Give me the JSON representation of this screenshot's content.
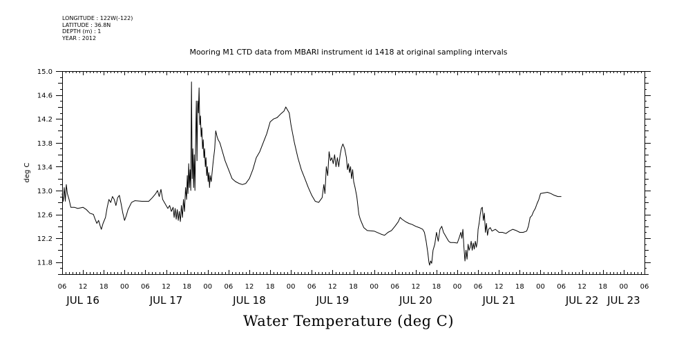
{
  "header_info": {
    "lines": [
      "LONGITUDE : 122W(-122)",
      "LATITUDE : 36.8N",
      "DEPTH (m) : 1",
      "YEAR : 2012"
    ]
  },
  "chart_data": {
    "type": "line",
    "title": "Mooring M1 CTD data from MBARI instrument id 1418 at original sampling intervals",
    "xlabel": "Water Temperature (deg C)",
    "ylabel": "deg C",
    "ylim": [
      11.6,
      15.0
    ],
    "yticks": [
      "11.8",
      "12.2",
      "12.6",
      "13.0",
      "13.4",
      "13.8",
      "14.2",
      "14.6",
      "15.0"
    ],
    "xlim_hours": [
      6,
      174
    ],
    "hour_tick_labels": [
      "06",
      "12",
      "18",
      "00",
      "06",
      "12",
      "18",
      "00",
      "06",
      "12",
      "18",
      "00",
      "06",
      "12",
      "18",
      "00",
      "06",
      "12",
      "18",
      "00",
      "06",
      "12",
      "18",
      "00",
      "06",
      "12",
      "18",
      "00",
      "06"
    ],
    "day_labels": [
      {
        "label": "JUL 16",
        "hour": 12
      },
      {
        "label": "JUL 17",
        "hour": 36
      },
      {
        "label": "JUL 18",
        "hour": 60
      },
      {
        "label": "JUL 19",
        "hour": 84
      },
      {
        "label": "JUL 20",
        "hour": 108
      },
      {
        "label": "JUL 21",
        "hour": 132
      },
      {
        "label": "JUL 22",
        "hour": 156
      },
      {
        "label": "JUL 23",
        "hour": 168
      }
    ],
    "series": [
      {
        "color": "#000000",
        "points": [
          [
            6.0,
            12.95
          ],
          [
            6.3,
            12.82
          ],
          [
            6.6,
            13.05
          ],
          [
            6.9,
            12.82
          ],
          [
            7.2,
            13.1
          ],
          [
            7.5,
            12.95
          ],
          [
            8.0,
            12.85
          ],
          [
            8.5,
            12.72
          ],
          [
            9.5,
            12.72
          ],
          [
            10.5,
            12.7
          ],
          [
            12.0,
            12.72
          ],
          [
            13.0,
            12.68
          ],
          [
            14.0,
            12.62
          ],
          [
            15.0,
            12.6
          ],
          [
            15.5,
            12.52
          ],
          [
            16.0,
            12.45
          ],
          [
            16.5,
            12.5
          ],
          [
            17.0,
            12.4
          ],
          [
            17.3,
            12.35
          ],
          [
            17.8,
            12.45
          ],
          [
            18.5,
            12.55
          ],
          [
            19.0,
            12.72
          ],
          [
            19.5,
            12.85
          ],
          [
            20.0,
            12.8
          ],
          [
            20.5,
            12.9
          ],
          [
            21.0,
            12.85
          ],
          [
            21.5,
            12.75
          ],
          [
            22.0,
            12.88
          ],
          [
            22.5,
            12.92
          ],
          [
            23.0,
            12.78
          ],
          [
            23.5,
            12.62
          ],
          [
            24.0,
            12.5
          ],
          [
            24.5,
            12.58
          ],
          [
            25.0,
            12.68
          ],
          [
            26.0,
            12.8
          ],
          [
            27.0,
            12.83
          ],
          [
            29.0,
            12.82
          ],
          [
            31.0,
            12.82
          ],
          [
            32.0,
            12.88
          ],
          [
            33.0,
            12.95
          ],
          [
            33.5,
            13.0
          ],
          [
            34.0,
            12.9
          ],
          [
            34.5,
            13.02
          ],
          [
            35.0,
            12.85
          ],
          [
            35.5,
            12.8
          ],
          [
            36.0,
            12.75
          ],
          [
            36.5,
            12.7
          ],
          [
            37.0,
            12.75
          ],
          [
            37.5,
            12.65
          ],
          [
            38.0,
            12.72
          ],
          [
            38.3,
            12.55
          ],
          [
            38.6,
            12.7
          ],
          [
            38.9,
            12.52
          ],
          [
            39.2,
            12.68
          ],
          [
            39.5,
            12.5
          ],
          [
            39.8,
            12.65
          ],
          [
            40.1,
            12.48
          ],
          [
            40.4,
            12.75
          ],
          [
            40.7,
            12.55
          ],
          [
            41.0,
            12.85
          ],
          [
            41.3,
            12.65
          ],
          [
            41.6,
            13.05
          ],
          [
            41.9,
            12.85
          ],
          [
            42.1,
            13.25
          ],
          [
            42.3,
            12.95
          ],
          [
            42.5,
            13.45
          ],
          [
            42.7,
            13.05
          ],
          [
            42.9,
            13.35
          ],
          [
            43.1,
            13.0
          ],
          [
            43.3,
            14.82
          ],
          [
            43.5,
            13.2
          ],
          [
            43.7,
            13.7
          ],
          [
            43.9,
            13.05
          ],
          [
            44.1,
            13.6
          ],
          [
            44.3,
            13.0
          ],
          [
            44.5,
            13.8
          ],
          [
            44.7,
            14.5
          ],
          [
            44.9,
            13.5
          ],
          [
            45.1,
            14.5
          ],
          [
            45.3,
            14.3
          ],
          [
            45.5,
            14.72
          ],
          [
            45.7,
            14.1
          ],
          [
            45.9,
            14.25
          ],
          [
            46.1,
            13.9
          ],
          [
            46.3,
            14.05
          ],
          [
            46.5,
            13.7
          ],
          [
            46.7,
            13.85
          ],
          [
            46.9,
            13.55
          ],
          [
            47.1,
            13.7
          ],
          [
            47.3,
            13.4
          ],
          [
            47.5,
            13.55
          ],
          [
            47.7,
            13.25
          ],
          [
            47.9,
            13.4
          ],
          [
            48.1,
            13.15
          ],
          [
            48.3,
            13.3
          ],
          [
            48.5,
            13.05
          ],
          [
            48.7,
            13.25
          ],
          [
            49.0,
            13.15
          ],
          [
            49.5,
            13.45
          ],
          [
            50.0,
            13.7
          ],
          [
            50.3,
            14.0
          ],
          [
            50.7,
            13.9
          ],
          [
            51.0,
            13.85
          ],
          [
            51.5,
            13.8
          ],
          [
            52.0,
            13.7
          ],
          [
            53.0,
            13.5
          ],
          [
            54.0,
            13.35
          ],
          [
            55.0,
            13.2
          ],
          [
            56.0,
            13.15
          ],
          [
            57.0,
            13.12
          ],
          [
            58.0,
            13.1
          ],
          [
            59.0,
            13.12
          ],
          [
            60.0,
            13.2
          ],
          [
            61.0,
            13.35
          ],
          [
            62.0,
            13.55
          ],
          [
            63.0,
            13.65
          ],
          [
            64.0,
            13.8
          ],
          [
            65.0,
            13.95
          ],
          [
            66.0,
            14.15
          ],
          [
            67.0,
            14.2
          ],
          [
            68.0,
            14.22
          ],
          [
            69.0,
            14.28
          ],
          [
            70.0,
            14.33
          ],
          [
            70.5,
            14.4
          ],
          [
            71.0,
            14.35
          ],
          [
            71.5,
            14.3
          ],
          [
            72.0,
            14.1
          ],
          [
            73.0,
            13.8
          ],
          [
            74.0,
            13.55
          ],
          [
            75.0,
            13.35
          ],
          [
            76.0,
            13.2
          ],
          [
            77.0,
            13.05
          ],
          [
            78.0,
            12.92
          ],
          [
            79.0,
            12.82
          ],
          [
            80.0,
            12.8
          ],
          [
            81.0,
            12.88
          ],
          [
            81.5,
            13.1
          ],
          [
            81.8,
            12.95
          ],
          [
            82.2,
            13.4
          ],
          [
            82.6,
            13.25
          ],
          [
            83.0,
            13.65
          ],
          [
            83.4,
            13.5
          ],
          [
            83.8,
            13.55
          ],
          [
            84.2,
            13.45
          ],
          [
            84.6,
            13.6
          ],
          [
            85.0,
            13.4
          ],
          [
            85.4,
            13.55
          ],
          [
            85.8,
            13.4
          ],
          [
            86.2,
            13.6
          ],
          [
            86.6,
            13.72
          ],
          [
            87.0,
            13.78
          ],
          [
            87.5,
            13.7
          ],
          [
            88.0,
            13.55
          ],
          [
            88.3,
            13.35
          ],
          [
            88.6,
            13.45
          ],
          [
            88.9,
            13.3
          ],
          [
            89.2,
            13.4
          ],
          [
            89.5,
            13.2
          ],
          [
            89.8,
            13.35
          ],
          [
            90.1,
            13.15
          ],
          [
            90.5,
            13.05
          ],
          [
            91.0,
            12.9
          ],
          [
            91.3,
            12.75
          ],
          [
            91.6,
            12.6
          ],
          [
            92.0,
            12.52
          ],
          [
            92.5,
            12.45
          ],
          [
            93.0,
            12.38
          ],
          [
            94.0,
            12.33
          ],
          [
            96.0,
            12.32
          ],
          [
            98.0,
            12.27
          ],
          [
            99.0,
            12.25
          ],
          [
            100.0,
            12.3
          ],
          [
            101.0,
            12.33
          ],
          [
            102.0,
            12.4
          ],
          [
            103.0,
            12.48
          ],
          [
            103.5,
            12.55
          ],
          [
            104.0,
            12.52
          ],
          [
            105.0,
            12.48
          ],
          [
            106.0,
            12.45
          ],
          [
            107.0,
            12.43
          ],
          [
            108.0,
            12.4
          ],
          [
            109.0,
            12.38
          ],
          [
            110.0,
            12.35
          ],
          [
            110.5,
            12.3
          ],
          [
            111.0,
            12.15
          ],
          [
            111.5,
            11.95
          ],
          [
            111.8,
            11.8
          ],
          [
            112.0,
            11.75
          ],
          [
            112.3,
            11.82
          ],
          [
            112.6,
            11.78
          ],
          [
            113.0,
            12.0
          ],
          [
            113.5,
            12.1
          ],
          [
            114.0,
            12.3
          ],
          [
            114.5,
            12.15
          ],
          [
            115.0,
            12.35
          ],
          [
            115.5,
            12.4
          ],
          [
            116.0,
            12.3
          ],
          [
            116.5,
            12.25
          ],
          [
            117.0,
            12.2
          ],
          [
            117.5,
            12.15
          ],
          [
            118.0,
            12.13
          ],
          [
            119.0,
            12.13
          ],
          [
            120.0,
            12.12
          ],
          [
            120.5,
            12.2
          ],
          [
            121.0,
            12.3
          ],
          [
            121.3,
            12.2
          ],
          [
            121.6,
            12.35
          ],
          [
            121.9,
            12.05
          ],
          [
            122.2,
            11.82
          ],
          [
            122.5,
            12.0
          ],
          [
            122.8,
            11.85
          ],
          [
            123.1,
            12.1
          ],
          [
            123.4,
            12.0
          ],
          [
            123.7,
            12.05
          ],
          [
            124.0,
            12.15
          ],
          [
            124.3,
            12.0
          ],
          [
            124.6,
            12.12
          ],
          [
            124.9,
            12.02
          ],
          [
            125.2,
            12.15
          ],
          [
            125.5,
            12.05
          ],
          [
            125.8,
            12.15
          ],
          [
            126.0,
            12.35
          ],
          [
            126.3,
            12.45
          ],
          [
            126.6,
            12.6
          ],
          [
            126.9,
            12.7
          ],
          [
            127.2,
            12.72
          ],
          [
            127.5,
            12.5
          ],
          [
            127.8,
            12.62
          ],
          [
            128.1,
            12.3
          ],
          [
            128.4,
            12.45
          ],
          [
            128.7,
            12.25
          ],
          [
            129.0,
            12.35
          ],
          [
            129.5,
            12.38
          ],
          [
            130.0,
            12.32
          ],
          [
            131.0,
            12.35
          ],
          [
            132.0,
            12.3
          ],
          [
            133.0,
            12.3
          ],
          [
            134.0,
            12.28
          ],
          [
            135.0,
            12.32
          ],
          [
            136.0,
            12.35
          ],
          [
            137.0,
            12.33
          ],
          [
            138.0,
            12.3
          ],
          [
            139.0,
            12.3
          ],
          [
            140.0,
            12.32
          ],
          [
            140.5,
            12.4
          ],
          [
            141.0,
            12.55
          ],
          [
            141.5,
            12.58
          ],
          [
            142.0,
            12.65
          ],
          [
            142.5,
            12.7
          ],
          [
            143.0,
            12.78
          ],
          [
            143.5,
            12.85
          ],
          [
            144.0,
            12.95
          ],
          [
            145.0,
            12.96
          ],
          [
            146.0,
            12.97
          ],
          [
            147.0,
            12.95
          ],
          [
            148.0,
            12.92
          ],
          [
            149.0,
            12.9
          ],
          [
            150.0,
            12.9
          ]
        ]
      }
    ]
  }
}
